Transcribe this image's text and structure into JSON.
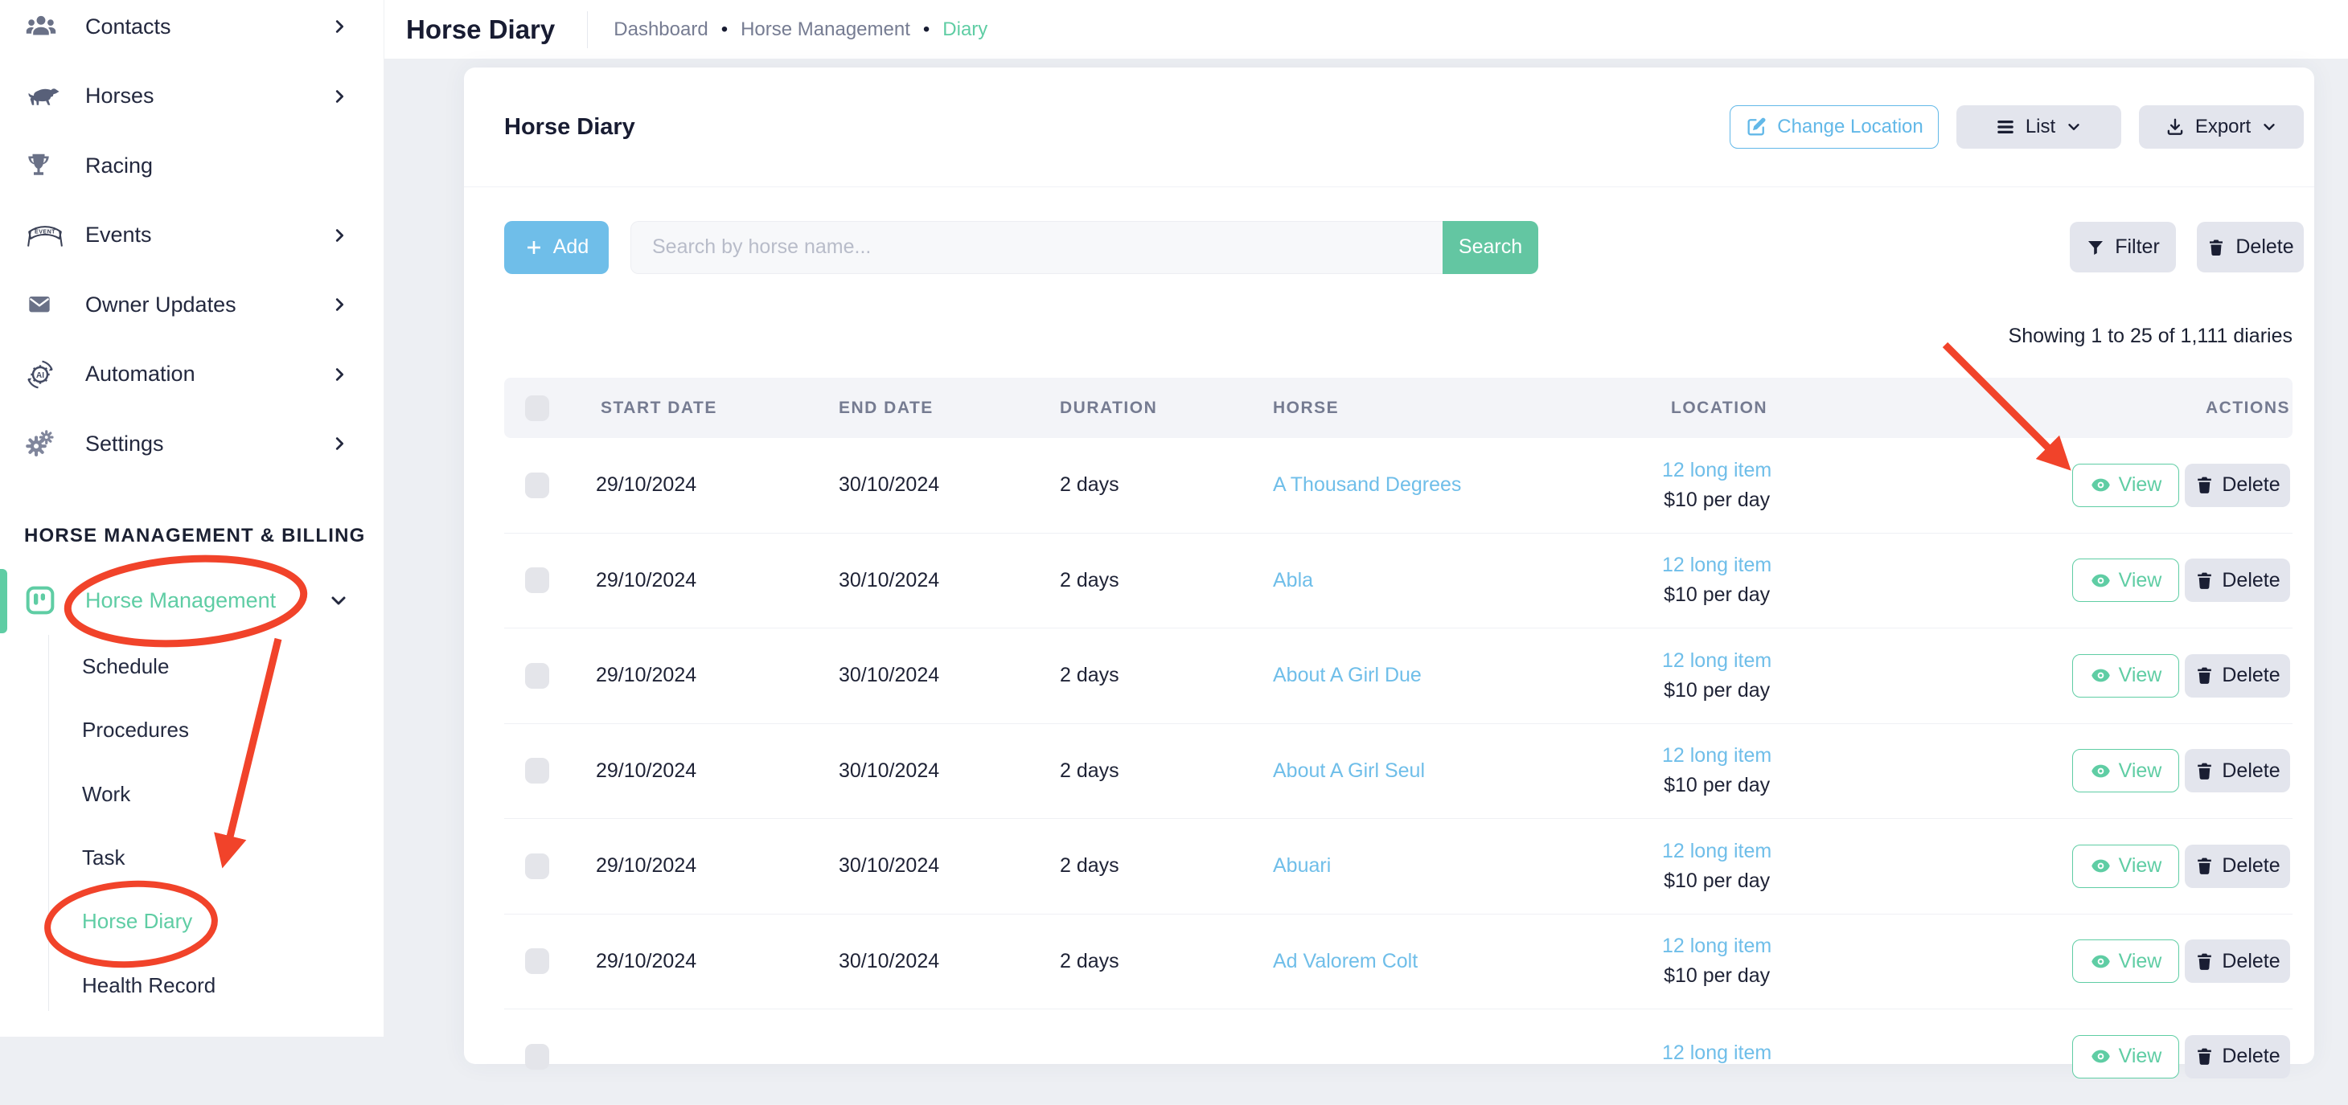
{
  "colors": {
    "accent_green": "#5FCDA4",
    "link_blue": "#6FBEE9",
    "outline_button_blue": "#62B8E8",
    "add_button_blue": "#6FBEE9",
    "search_button_green": "#63C6A2",
    "gray_button": "#E3E5ED",
    "annotation_red": "#F1432A",
    "navy_text": "#1B2032"
  },
  "sidebar": {
    "section_heading": "HORSE MANAGEMENT & BILLING",
    "items": [
      {
        "label": "Contacts",
        "icon": "contacts",
        "chevron": true
      },
      {
        "label": "Horses",
        "icon": "horse",
        "chevron": true
      },
      {
        "label": "Racing",
        "icon": "trophy",
        "chevron": false
      },
      {
        "label": "Events",
        "icon": "events-banner",
        "chevron": true
      },
      {
        "label": "Owner Updates",
        "icon": "envelope",
        "chevron": true
      },
      {
        "label": "Automation",
        "icon": "automation",
        "chevron": true
      },
      {
        "label": "Settings",
        "icon": "gears",
        "chevron": true
      }
    ],
    "group": {
      "label": "Horse Management",
      "icon": "board",
      "expanded": true
    },
    "sub_items": [
      {
        "label": "Schedule",
        "active": false
      },
      {
        "label": "Procedures",
        "active": false
      },
      {
        "label": "Work",
        "active": false
      },
      {
        "label": "Task",
        "active": false
      },
      {
        "label": "Horse Diary",
        "active": true
      },
      {
        "label": "Health Record",
        "active": false
      }
    ]
  },
  "topbar": {
    "title": "Horse Diary",
    "breadcrumb": [
      "Dashboard",
      "Horse Management",
      "Diary"
    ]
  },
  "panel": {
    "heading": "Horse Diary",
    "change_location_label": "Change Location",
    "list_label": "List",
    "export_label": "Export",
    "add_label": "Add",
    "search_placeholder": "Search by horse name...",
    "search_label": "Search",
    "filter_label": "Filter",
    "delete_label": "Delete",
    "showing_text": "Showing 1 to 25 of 1,111 diaries"
  },
  "table": {
    "columns": [
      "START DATE",
      "END DATE",
      "DURATION",
      "HORSE",
      "LOCATION",
      "ACTIONS"
    ],
    "actions": {
      "view": "View",
      "delete": "Delete"
    },
    "rows": [
      {
        "start_date": "29/10/2024",
        "end_date": "30/10/2024",
        "duration": "2 days",
        "horse": "A Thousand Degrees",
        "location_item": "12 long item",
        "location_price": "$10 per day"
      },
      {
        "start_date": "29/10/2024",
        "end_date": "30/10/2024",
        "duration": "2 days",
        "horse": "Abla",
        "location_item": "12 long item",
        "location_price": "$10 per day"
      },
      {
        "start_date": "29/10/2024",
        "end_date": "30/10/2024",
        "duration": "2 days",
        "horse": "About A Girl Due",
        "location_item": "12 long item",
        "location_price": "$10 per day"
      },
      {
        "start_date": "29/10/2024",
        "end_date": "30/10/2024",
        "duration": "2 days",
        "horse": "About A Girl Seul",
        "location_item": "12 long item",
        "location_price": "$10 per day"
      },
      {
        "start_date": "29/10/2024",
        "end_date": "30/10/2024",
        "duration": "2 days",
        "horse": "Abuari",
        "location_item": "12 long item",
        "location_price": "$10 per day"
      },
      {
        "start_date": "29/10/2024",
        "end_date": "30/10/2024",
        "duration": "2 days",
        "horse": "Ad Valorem Colt",
        "location_item": "12 long item",
        "location_price": "$10 per day"
      },
      {
        "start_date": "",
        "end_date": "",
        "duration": "",
        "horse": "",
        "location_item": "12 long item",
        "location_price": ""
      }
    ]
  }
}
